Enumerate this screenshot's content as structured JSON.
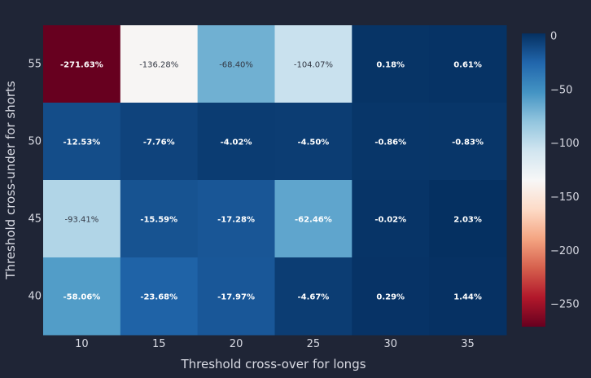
{
  "chart_data": {
    "type": "heatmap",
    "xlabel": "Threshold cross-over for longs",
    "ylabel": "Threshold cross-under for shorts",
    "x": [
      "10",
      "15",
      "20",
      "25",
      "30",
      "35"
    ],
    "y": [
      "55",
      "50",
      "45",
      "40"
    ],
    "values": [
      [
        -271.63,
        -136.28,
        -68.4,
        -104.07,
        0.18,
        0.61
      ],
      [
        -12.53,
        -7.76,
        -4.02,
        -4.5,
        -0.86,
        -0.83
      ],
      [
        -93.41,
        -15.59,
        -17.28,
        -62.46,
        -0.02,
        2.03
      ],
      [
        -58.06,
        -23.68,
        -17.97,
        -4.67,
        0.29,
        1.44
      ]
    ],
    "labels": [
      [
        "-271.63%",
        "-136.28%",
        "-68.40%",
        "-104.07%",
        "0.18%",
        "0.61%"
      ],
      [
        "-12.53%",
        "-7.76%",
        "-4.02%",
        "-4.50%",
        "-0.86%",
        "-0.83%"
      ],
      [
        "-93.41%",
        "-15.59%",
        "-17.28%",
        "-62.46%",
        "-0.02%",
        "2.03%"
      ],
      [
        "-58.06%",
        "-23.68%",
        "-17.97%",
        "-4.67%",
        "0.29%",
        "1.44%"
      ]
    ],
    "colorscale": "RdBu",
    "zmin": -271.63,
    "zmax": 2.03,
    "colorbar_ticks": [
      "0",
      "−50",
      "−100",
      "−150",
      "−200",
      "−250"
    ],
    "colorbar_tick_values": [
      0,
      -50,
      -100,
      -150,
      -200,
      -250
    ]
  }
}
